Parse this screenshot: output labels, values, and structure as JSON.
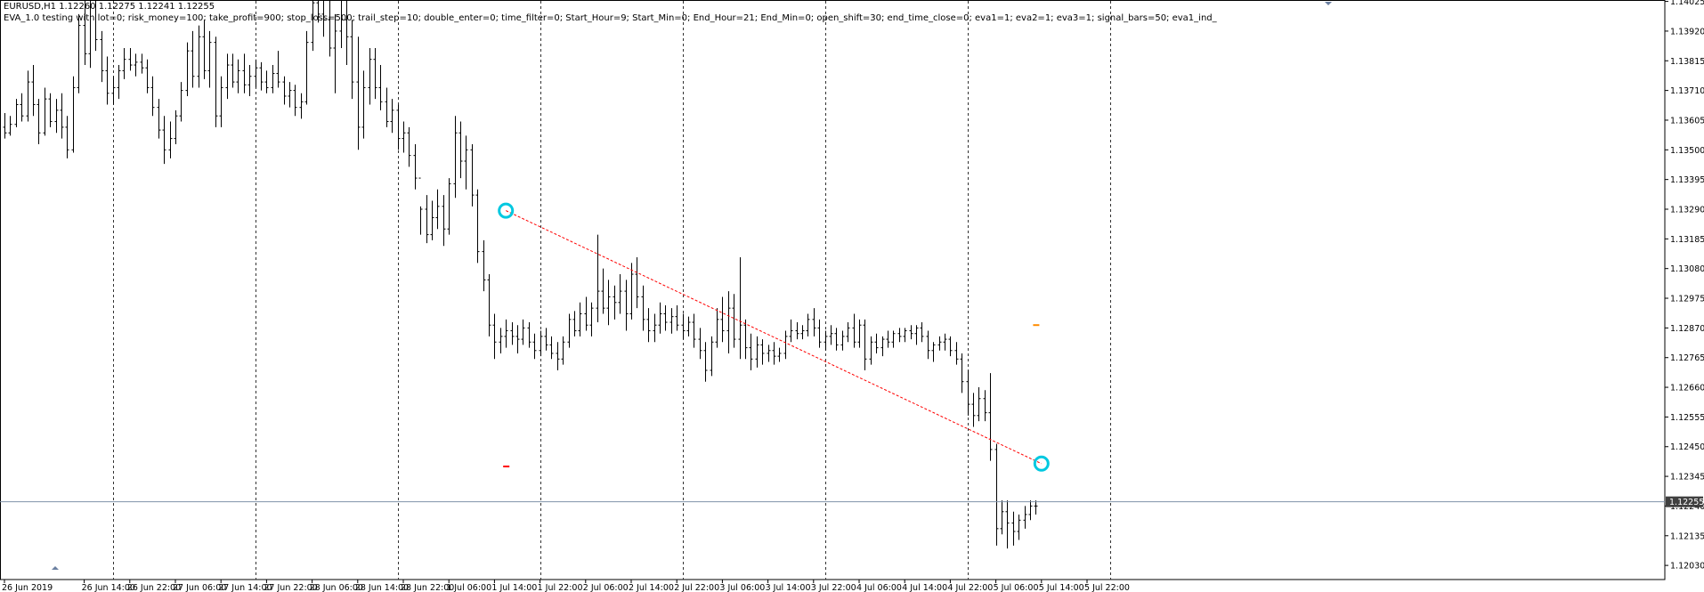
{
  "header": {
    "symbol_line": "EURUSD,H1  1.12260 1.12275 1.12241 1.12255",
    "ea_line": "EVA_1.0 testing with lot=0; risk_money=100; take_profit=900; stop_loss=500; trail_step=10; double_enter=0; time_filter=0; Start_Hour=9; Start_Min=0; End_Hour=21; End_Min=0; open_shift=30; end_time_close=0; eva1=1; eva2=1; eva3=1; signal_bars=50; eva1_ind_"
  },
  "colors": {
    "background": "#ffffff",
    "bars": "#000000",
    "grid": "#333333",
    "axis": "#000000",
    "current_price_line": "#7f93a8",
    "current_price_label_bg": "#404040",
    "trade_line": "#ff0000",
    "trade_marker": "#00c8e0",
    "level_marker": "#ff8c00"
  },
  "chart_data": {
    "type": "ohlc",
    "symbol": "EURUSD",
    "timeframe": "H1",
    "current_price": "1.12255",
    "ylim": [
      1.1198,
      1.1403
    ],
    "price_ticks": [
      "1.14025",
      "1.13920",
      "1.13815",
      "1.13710",
      "1.13605",
      "1.13500",
      "1.13395",
      "1.13290",
      "1.13185",
      "1.13080",
      "1.12975",
      "1.12870",
      "1.12765",
      "1.12660",
      "1.12555",
      "1.12450",
      "1.12345",
      "1.12240",
      "1.12135",
      "1.12030"
    ],
    "time_ticks": [
      {
        "label": "26 Jun 2019",
        "bar": 0
      },
      {
        "label": "26 Jun 14:00",
        "bar": 14
      },
      {
        "label": "26 Jun 22:00",
        "bar": 22
      },
      {
        "label": "27 Jun 06:00",
        "bar": 30
      },
      {
        "label": "27 Jun 14:00",
        "bar": 38
      },
      {
        "label": "27 Jun 22:00",
        "bar": 46
      },
      {
        "label": "28 Jun 06:00",
        "bar": 54
      },
      {
        "label": "28 Jun 14:00",
        "bar": 62
      },
      {
        "label": "28 Jun 22:00",
        "bar": 70
      },
      {
        "label": "1 Jul 06:00",
        "bar": 78
      },
      {
        "label": "1 Jul 14:00",
        "bar": 86
      },
      {
        "label": "1 Jul 22:00",
        "bar": 94
      },
      {
        "label": "2 Jul 06:00",
        "bar": 102
      },
      {
        "label": "2 Jul 14:00",
        "bar": 110
      },
      {
        "label": "2 Jul 22:00",
        "bar": 118
      },
      {
        "label": "3 Jul 06:00",
        "bar": 126
      },
      {
        "label": "3 Jul 14:00",
        "bar": 134
      },
      {
        "label": "3 Jul 22:00",
        "bar": 142
      },
      {
        "label": "4 Jul 06:00",
        "bar": 150
      },
      {
        "label": "4 Jul 14:00",
        "bar": 158
      },
      {
        "label": "4 Jul 22:00",
        "bar": 166
      },
      {
        "label": "5 Jul 06:00",
        "bar": 174
      },
      {
        "label": "5 Jul 14:00",
        "bar": 182
      },
      {
        "label": "5 Jul 22:00",
        "bar": 190
      }
    ],
    "period_separators_bars": [
      19,
      44,
      69,
      94,
      119,
      144,
      169,
      194
    ],
    "bars": [
      [
        1.1358,
        1.1363,
        1.1354,
        1.1356
      ],
      [
        1.1356,
        1.1362,
        1.1355,
        1.1359
      ],
      [
        1.1359,
        1.1368,
        1.1358,
        1.1366
      ],
      [
        1.1366,
        1.137,
        1.136,
        1.1362
      ],
      [
        1.1362,
        1.1378,
        1.136,
        1.1374
      ],
      [
        1.1374,
        1.138,
        1.1362,
        1.1366
      ],
      [
        1.1366,
        1.1368,
        1.1352,
        1.1356
      ],
      [
        1.1356,
        1.1372,
        1.1355,
        1.1368
      ],
      [
        1.1368,
        1.137,
        1.1358,
        1.136
      ],
      [
        1.136,
        1.1368,
        1.1356,
        1.1364
      ],
      [
        1.1364,
        1.137,
        1.1354,
        1.1358
      ],
      [
        1.1358,
        1.1362,
        1.1347,
        1.135
      ],
      [
        1.135,
        1.1376,
        1.1349,
        1.1372
      ],
      [
        1.1372,
        1.1398,
        1.137,
        1.1394
      ],
      [
        1.1394,
        1.1416,
        1.138,
        1.1384
      ],
      [
        1.1384,
        1.1414,
        1.1379,
        1.1408
      ],
      [
        1.1408,
        1.141,
        1.1385,
        1.1389
      ],
      [
        1.1389,
        1.1392,
        1.1374,
        1.1378
      ],
      [
        1.1378,
        1.1383,
        1.1366,
        1.137
      ],
      [
        1.137,
        1.1376,
        1.1366,
        1.1372
      ],
      [
        1.1372,
        1.138,
        1.1368,
        1.1378
      ],
      [
        1.1378,
        1.1386,
        1.1375,
        1.1382
      ],
      [
        1.1382,
        1.1386,
        1.1378,
        1.138
      ],
      [
        1.138,
        1.1384,
        1.1376,
        1.1381
      ],
      [
        1.1381,
        1.1384,
        1.1377,
        1.1379
      ],
      [
        1.1379,
        1.1382,
        1.137,
        1.1372
      ],
      [
        1.1372,
        1.1376,
        1.1362,
        1.1365
      ],
      [
        1.1365,
        1.1368,
        1.1354,
        1.1357
      ],
      [
        1.1357,
        1.1362,
        1.1345,
        1.135
      ],
      [
        1.135,
        1.136,
        1.1347,
        1.1354
      ],
      [
        1.1354,
        1.1364,
        1.1352,
        1.1362
      ],
      [
        1.1362,
        1.1374,
        1.136,
        1.1371
      ],
      [
        1.1371,
        1.1388,
        1.1369,
        1.1385
      ],
      [
        1.1385,
        1.1392,
        1.1372,
        1.1376
      ],
      [
        1.1376,
        1.1394,
        1.1372,
        1.139
      ],
      [
        1.139,
        1.1396,
        1.1375,
        1.1378
      ],
      [
        1.1378,
        1.1392,
        1.1372,
        1.1388
      ],
      [
        1.1388,
        1.139,
        1.1358,
        1.1362
      ],
      [
        1.1362,
        1.1376,
        1.1358,
        1.1372
      ],
      [
        1.1372,
        1.1384,
        1.1368,
        1.138
      ],
      [
        1.138,
        1.1384,
        1.1372,
        1.1374
      ],
      [
        1.1374,
        1.1382,
        1.137,
        1.1378
      ],
      [
        1.1378,
        1.1384,
        1.137,
        1.1373
      ],
      [
        1.1373,
        1.138,
        1.1369,
        1.1376
      ],
      [
        1.1376,
        1.1382,
        1.1372,
        1.1379
      ],
      [
        1.1379,
        1.1381,
        1.1371,
        1.1374
      ],
      [
        1.1374,
        1.1378,
        1.137,
        1.1372
      ],
      [
        1.1372,
        1.138,
        1.137,
        1.1377
      ],
      [
        1.1377,
        1.1385,
        1.1372,
        1.1374
      ],
      [
        1.1374,
        1.1376,
        1.1366,
        1.1369
      ],
      [
        1.1369,
        1.1374,
        1.1365,
        1.1371
      ],
      [
        1.1371,
        1.1373,
        1.1362,
        1.1365
      ],
      [
        1.1365,
        1.137,
        1.1361,
        1.1367
      ],
      [
        1.1367,
        1.1392,
        1.1366,
        1.1388
      ],
      [
        1.1388,
        1.141,
        1.1385,
        1.1402
      ],
      [
        1.1402,
        1.1414,
        1.1395,
        1.1398
      ],
      [
        1.1398,
        1.1412,
        1.139,
        1.1396
      ],
      [
        1.1396,
        1.1404,
        1.1383,
        1.1386
      ],
      [
        1.1386,
        1.1398,
        1.137,
        1.1392
      ],
      [
        1.1392,
        1.1404,
        1.1386,
        1.1396
      ],
      [
        1.1396,
        1.1414,
        1.138,
        1.139
      ],
      [
        1.139,
        1.1396,
        1.1368,
        1.1374
      ],
      [
        1.1374,
        1.139,
        1.135,
        1.1358
      ],
      [
        1.1358,
        1.1378,
        1.1354,
        1.1372
      ],
      [
        1.1372,
        1.1386,
        1.1366,
        1.1382
      ],
      [
        1.1382,
        1.1386,
        1.1368,
        1.1372
      ],
      [
        1.1372,
        1.138,
        1.1364,
        1.1367
      ],
      [
        1.1367,
        1.1372,
        1.1358,
        1.136
      ],
      [
        1.136,
        1.1368,
        1.1356,
        1.1364
      ],
      [
        1.1364,
        1.1366,
        1.135,
        1.1354
      ],
      [
        1.1354,
        1.136,
        1.1349,
        1.1356
      ],
      [
        1.1356,
        1.1358,
        1.1344,
        1.1348
      ],
      [
        1.1348,
        1.1352,
        1.1336,
        1.134
      ],
      [
        1.134,
        1.133,
        1.132,
        1.1329
      ],
      [
        1.1329,
        1.1334,
        1.1317,
        1.132
      ],
      [
        1.132,
        1.1332,
        1.1318,
        1.1326
      ],
      [
        1.1326,
        1.1336,
        1.1322,
        1.133
      ],
      [
        1.133,
        1.1334,
        1.1316,
        1.1322
      ],
      [
        1.1322,
        1.134,
        1.132,
        1.1338
      ],
      [
        1.1338,
        1.1362,
        1.1333,
        1.1356
      ],
      [
        1.1356,
        1.136,
        1.134,
        1.1346
      ],
      [
        1.1346,
        1.1355,
        1.1336,
        1.135
      ],
      [
        1.135,
        1.1352,
        1.133,
        1.1334
      ],
      [
        1.1334,
        1.1336,
        1.131,
        1.1314
      ],
      [
        1.1314,
        1.1318,
        1.13,
        1.1304
      ],
      [
        1.1304,
        1.1306,
        1.1284,
        1.1288
      ],
      [
        1.1288,
        1.1292,
        1.1276,
        1.1282
      ],
      [
        1.1282,
        1.1287,
        1.1278,
        1.1284
      ],
      [
        1.1284,
        1.129,
        1.128,
        1.1286
      ],
      [
        1.1286,
        1.1289,
        1.1281,
        1.1284
      ],
      [
        1.1284,
        1.1288,
        1.1278,
        1.1283
      ],
      [
        1.1283,
        1.129,
        1.1281,
        1.1287
      ],
      [
        1.1287,
        1.1289,
        1.128,
        1.1282
      ],
      [
        1.1282,
        1.1285,
        1.1276,
        1.1279
      ],
      [
        1.1279,
        1.1286,
        1.1277,
        1.1284
      ],
      [
        1.1284,
        1.1287,
        1.1279,
        1.1281
      ],
      [
        1.1281,
        1.1284,
        1.1276,
        1.1278
      ],
      [
        1.1278,
        1.1282,
        1.1272,
        1.1276
      ],
      [
        1.1276,
        1.1284,
        1.1274,
        1.1282
      ],
      [
        1.1282,
        1.1292,
        1.128,
        1.129
      ],
      [
        1.129,
        1.1293,
        1.1284,
        1.1286
      ],
      [
        1.1286,
        1.1296,
        1.1284,
        1.1292
      ],
      [
        1.1292,
        1.1298,
        1.1286,
        1.1288
      ],
      [
        1.1288,
        1.1296,
        1.1284,
        1.1294
      ],
      [
        1.1294,
        1.132,
        1.1289,
        1.13
      ],
      [
        1.13,
        1.1308,
        1.1292,
        1.1294
      ],
      [
        1.1294,
        1.1304,
        1.1288,
        1.1298
      ],
      [
        1.1298,
        1.1302,
        1.129,
        1.1296
      ],
      [
        1.1296,
        1.1306,
        1.1292,
        1.13
      ],
      [
        1.13,
        1.1304,
        1.1286,
        1.1292
      ],
      [
        1.1292,
        1.131,
        1.129,
        1.1306
      ],
      [
        1.1306,
        1.1312,
        1.1294,
        1.1298
      ],
      [
        1.1298,
        1.1302,
        1.1286,
        1.129
      ],
      [
        1.129,
        1.1294,
        1.1282,
        1.1286
      ],
      [
        1.1286,
        1.1292,
        1.1282,
        1.1288
      ],
      [
        1.1288,
        1.1296,
        1.1285,
        1.1292
      ],
      [
        1.1292,
        1.1295,
        1.1286,
        1.1289
      ],
      [
        1.1289,
        1.1294,
        1.1285,
        1.1291
      ],
      [
        1.1291,
        1.1295,
        1.1286,
        1.1288
      ],
      [
        1.1288,
        1.1292,
        1.1283,
        1.1286
      ],
      [
        1.1286,
        1.1291,
        1.1284,
        1.1289
      ],
      [
        1.1289,
        1.1292,
        1.128,
        1.1283
      ],
      [
        1.1283,
        1.1287,
        1.1276,
        1.1279
      ],
      [
        1.1279,
        1.1282,
        1.1268,
        1.1272
      ],
      [
        1.1272,
        1.1284,
        1.127,
        1.1282
      ],
      [
        1.1282,
        1.1294,
        1.128,
        1.129
      ],
      [
        1.129,
        1.1298,
        1.1282,
        1.1286
      ],
      [
        1.1286,
        1.13,
        1.1278,
        1.1294
      ],
      [
        1.1294,
        1.1299,
        1.128,
        1.1283
      ],
      [
        1.1283,
        1.1312,
        1.1276,
        1.1288
      ],
      [
        1.1288,
        1.129,
        1.1276,
        1.128
      ],
      [
        1.128,
        1.1285,
        1.1272,
        1.1276
      ],
      [
        1.1276,
        1.1284,
        1.1273,
        1.1281
      ],
      [
        1.1281,
        1.1283,
        1.1274,
        1.1278
      ],
      [
        1.1278,
        1.1281,
        1.1275,
        1.1279
      ],
      [
        1.1279,
        1.1282,
        1.1274,
        1.1277
      ],
      [
        1.1277,
        1.128,
        1.1275,
        1.1278
      ],
      [
        1.1278,
        1.1286,
        1.1276,
        1.1284
      ],
      [
        1.1284,
        1.129,
        1.1282,
        1.1286
      ],
      [
        1.1286,
        1.1289,
        1.1283,
        1.1285
      ],
      [
        1.1285,
        1.1288,
        1.1283,
        1.1286
      ],
      [
        1.1286,
        1.1292,
        1.1284,
        1.129
      ],
      [
        1.129,
        1.1294,
        1.1284,
        1.1287
      ],
      [
        1.1287,
        1.129,
        1.128,
        1.1282
      ],
      [
        1.1282,
        1.1286,
        1.1279,
        1.1284
      ],
      [
        1.1284,
        1.1288,
        1.1281,
        1.1285
      ],
      [
        1.1285,
        1.1287,
        1.1279,
        1.1281
      ],
      [
        1.1281,
        1.1286,
        1.1279,
        1.1284
      ],
      [
        1.1284,
        1.1289,
        1.1282,
        1.1287
      ],
      [
        1.1287,
        1.1292,
        1.128,
        1.1282
      ],
      [
        1.1282,
        1.129,
        1.128,
        1.1288
      ],
      [
        1.1288,
        1.129,
        1.1272,
        1.1276
      ],
      [
        1.1276,
        1.1284,
        1.1274,
        1.1282
      ],
      [
        1.1282,
        1.1285,
        1.1278,
        1.128
      ],
      [
        1.128,
        1.1284,
        1.1277,
        1.1283
      ],
      [
        1.1283,
        1.1286,
        1.128,
        1.1282
      ],
      [
        1.1282,
        1.1286,
        1.128,
        1.1285
      ],
      [
        1.1285,
        1.1287,
        1.1282,
        1.1284
      ],
      [
        1.1284,
        1.1287,
        1.1282,
        1.1286
      ],
      [
        1.1286,
        1.1288,
        1.1283,
        1.1285
      ],
      [
        1.1285,
        1.1288,
        1.1281,
        1.1287
      ],
      [
        1.1287,
        1.1289,
        1.1282,
        1.1284
      ],
      [
        1.1284,
        1.1286,
        1.1276,
        1.1279
      ],
      [
        1.1279,
        1.1282,
        1.1275,
        1.1281
      ],
      [
        1.1281,
        1.1284,
        1.1279,
        1.1282
      ],
      [
        1.1282,
        1.1285,
        1.1279,
        1.1283
      ],
      [
        1.1283,
        1.1284,
        1.1277,
        1.1279
      ],
      [
        1.1279,
        1.1282,
        1.1274,
        1.1276
      ],
      [
        1.1276,
        1.1278,
        1.1264,
        1.1268
      ],
      [
        1.1268,
        1.1272,
        1.1256,
        1.126
      ],
      [
        1.126,
        1.1264,
        1.1252,
        1.1256
      ],
      [
        1.1256,
        1.1266,
        1.1254,
        1.1262
      ],
      [
        1.1262,
        1.1265,
        1.1254,
        1.1257
      ],
      [
        1.1257,
        1.1271,
        1.124,
        1.1244
      ],
      [
        1.1244,
        1.1246,
        1.121,
        1.1216
      ],
      [
        1.1216,
        1.1226,
        1.1214,
        1.1222
      ],
      [
        1.1222,
        1.1226,
        1.1209,
        1.1218
      ],
      [
        1.1218,
        1.1222,
        1.121,
        1.1215
      ],
      [
        1.1215,
        1.1221,
        1.1212,
        1.1219
      ],
      [
        1.1219,
        1.1224,
        1.1216,
        1.1221
      ],
      [
        1.1221,
        1.1226,
        1.1219,
        1.1224
      ],
      [
        1.1224,
        1.1226,
        1.1221,
        1.1224
      ]
    ],
    "trade_line": {
      "from_bar": 88,
      "from_price": 1.13285,
      "to_bar": 182,
      "to_price": 1.1239
    },
    "trade_markers": [
      {
        "bar": 88,
        "price": 1.13285
      },
      {
        "bar": 182,
        "price": 1.1239
      }
    ],
    "level_markers": [
      {
        "bar": 88,
        "price": 1.1238,
        "color_key": "trade_line"
      },
      {
        "bar": 181,
        "price": 1.1288,
        "color_key": "level_marker"
      }
    ]
  }
}
